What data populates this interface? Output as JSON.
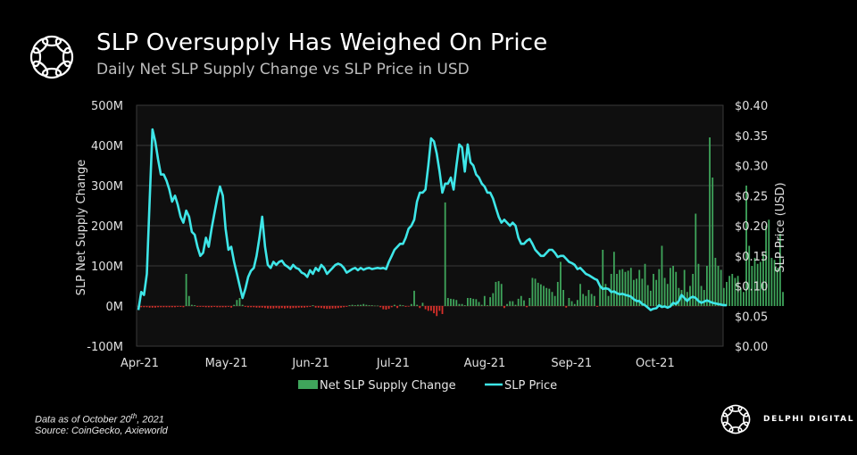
{
  "header": {
    "title": "SLP Oversupply Has Weighed On Price",
    "subtitle": "Daily Net SLP Supply Change vs SLP Price in USD",
    "logo_icon": "delphi-knot-icon"
  },
  "footer": {
    "data_as_of_prefix": "Data as of October 20",
    "data_as_of_sup": "th",
    "data_as_of_suffix": ", 2021",
    "source": "Source: CoinGecko, Axieworld",
    "brand_name": "DELPHI DIGITAL"
  },
  "colors": {
    "background": "#000000",
    "plot_bg": "#0f0f0f",
    "grid": "#4a4a4a",
    "bar_positive": "#3fa55b",
    "bar_negative": "#d9302a",
    "price_line": "#3ee6e8",
    "axis_text": "#e0e0e0"
  },
  "chart_data": {
    "type": "bar+line",
    "title": "SLP Oversupply Has Weighed On Price",
    "subtitle": "Daily Net SLP Supply Change vs SLP Price in USD",
    "xlabel": "",
    "ylabel_left": "SLP Net Supply Change",
    "ylabel_right": "SLP Price (USD)",
    "y_left": {
      "min": -100,
      "max": 500,
      "unit": "M",
      "ticks": [
        "500M",
        "400M",
        "300M",
        "200M",
        "100M",
        "0M",
        "-100M"
      ],
      "tick_values": [
        500,
        400,
        300,
        200,
        100,
        0,
        -100
      ]
    },
    "y_right": {
      "min": 0.0,
      "max": 0.4,
      "ticks": [
        "$0.40",
        "$0.35",
        "$0.30",
        "$0.25",
        "$0.20",
        "$0.15",
        "$0.10",
        "$0.05",
        "$0.00"
      ],
      "tick_values": [
        0.4,
        0.35,
        0.3,
        0.25,
        0.2,
        0.15,
        0.1,
        0.05,
        0.0
      ]
    },
    "x_ticks": [
      "Apr-21",
      "May-21",
      "Jun-21",
      "Jul-21",
      "Aug-21",
      "Sep-21",
      "Oct-21"
    ],
    "x_tick_days": [
      0,
      30,
      61,
      91,
      122,
      153,
      183
    ],
    "start_date": "2021-04-01",
    "end_date": "2021-10-20",
    "grid": true,
    "legend": {
      "placement": "bottom",
      "entries": [
        {
          "label": "Net SLP Supply Change",
          "type": "bar"
        },
        {
          "label": "SLP Price",
          "type": "line"
        }
      ]
    },
    "series": [
      {
        "name": "SLP Price",
        "axis": "right",
        "unit": "USD",
        "values": [
          0.06,
          0.09,
          0.085,
          0.12,
          0.24,
          0.36,
          0.34,
          0.31,
          0.285,
          0.285,
          0.275,
          0.26,
          0.24,
          0.25,
          0.235,
          0.215,
          0.205,
          0.225,
          0.215,
          0.19,
          0.185,
          0.165,
          0.15,
          0.155,
          0.18,
          0.165,
          0.195,
          0.22,
          0.245,
          0.265,
          0.25,
          0.195,
          0.16,
          0.165,
          0.14,
          0.12,
          0.1,
          0.08,
          0.095,
          0.115,
          0.125,
          0.13,
          0.15,
          0.18,
          0.215,
          0.165,
          0.135,
          0.13,
          0.14,
          0.135,
          0.14,
          0.142,
          0.135,
          0.132,
          0.128,
          0.135,
          0.13,
          0.128,
          0.122,
          0.12,
          0.115,
          0.126,
          0.12,
          0.13,
          0.125,
          0.135,
          0.13,
          0.12,
          0.125,
          0.13,
          0.135,
          0.137,
          0.135,
          0.13,
          0.122,
          0.125,
          0.128,
          0.13,
          0.126,
          0.13,
          0.127,
          0.129,
          0.13,
          0.128,
          0.129,
          0.13,
          0.129,
          0.13,
          0.128,
          0.14,
          0.15,
          0.16,
          0.165,
          0.17,
          0.17,
          0.18,
          0.195,
          0.2,
          0.21,
          0.24,
          0.255,
          0.255,
          0.26,
          0.3,
          0.345,
          0.34,
          0.32,
          0.29,
          0.255,
          0.27,
          0.27,
          0.28,
          0.26,
          0.3,
          0.335,
          0.33,
          0.29,
          0.335,
          0.305,
          0.3,
          0.285,
          0.28,
          0.27,
          0.265,
          0.255,
          0.255,
          0.245,
          0.23,
          0.215,
          0.205,
          0.21,
          0.205,
          0.2,
          0.205,
          0.2,
          0.18,
          0.17,
          0.17,
          0.175,
          0.178,
          0.17,
          0.16,
          0.155,
          0.15,
          0.15,
          0.155,
          0.16,
          0.16,
          0.155,
          0.148,
          0.15,
          0.15,
          0.145,
          0.14,
          0.138,
          0.135,
          0.128,
          0.13,
          0.125,
          0.12,
          0.118,
          0.115,
          0.112,
          0.11,
          0.1,
          0.095,
          0.096,
          0.095,
          0.09,
          0.091,
          0.088,
          0.086,
          0.087,
          0.085,
          0.084,
          0.082,
          0.078,
          0.075,
          0.075,
          0.07,
          0.068,
          0.064,
          0.06,
          0.062,
          0.063,
          0.068,
          0.065,
          0.066,
          0.064,
          0.066,
          0.072,
          0.07,
          0.075,
          0.085,
          0.08,
          0.075,
          0.08,
          0.082,
          0.08,
          0.075,
          0.072,
          0.074,
          0.076,
          0.074,
          0.072,
          0.071,
          0.07,
          0.069,
          0.068,
          0.068
        ]
      },
      {
        "name": "Net SLP Supply Change",
        "axis": "left",
        "unit": "M",
        "values": [
          -3,
          -3,
          -3,
          -3,
          -4,
          -4,
          -4,
          -3,
          -3,
          -3,
          -3,
          -3,
          -3,
          -3,
          -2,
          -2,
          -3,
          80,
          25,
          3,
          2,
          -2,
          -2,
          -2,
          -3,
          -3,
          -3,
          -2,
          -3,
          -3,
          -3,
          -3,
          -2,
          -4,
          3,
          15,
          20,
          3,
          -2,
          -3,
          -3,
          -3,
          -4,
          -4,
          -4,
          -5,
          -6,
          -6,
          -6,
          -5,
          -6,
          -5,
          -6,
          -5,
          -6,
          -5,
          -5,
          -4,
          -4,
          -4,
          -3,
          -2,
          2,
          -4,
          -4,
          -5,
          -6,
          -7,
          -7,
          -6,
          -6,
          -5,
          -4,
          -3,
          -2,
          2,
          3,
          2,
          3,
          3,
          5,
          3,
          2,
          2,
          1,
          1,
          -3,
          -8,
          -9,
          -7,
          -3,
          3,
          -5,
          3,
          2,
          -2,
          -1,
          5,
          38,
          3,
          -5,
          8,
          -8,
          -12,
          -12,
          -18,
          -25,
          -12,
          -20,
          258,
          20,
          18,
          17,
          15,
          5,
          5,
          2,
          20,
          20,
          18,
          17,
          10,
          3,
          25,
          2,
          22,
          32,
          60,
          62,
          55,
          -5,
          5,
          12,
          12,
          3,
          18,
          25,
          14,
          -3,
          20,
          70,
          68,
          58,
          54,
          50,
          45,
          43,
          35,
          25,
          60,
          110,
          40,
          -4,
          20,
          12,
          5,
          15,
          55,
          30,
          25,
          40,
          30,
          25,
          -2,
          50,
          140,
          55,
          25,
          80,
          135,
          80,
          90,
          92,
          85,
          88,
          95,
          65,
          68,
          90,
          68,
          105,
          52,
          38,
          80,
          65,
          92,
          150,
          70,
          55,
          95,
          100,
          85,
          45,
          40,
          90,
          35,
          50,
          80,
          230,
          105,
          50,
          40,
          100,
          420,
          320,
          120,
          100,
          90,
          45,
          60,
          75,
          80,
          70,
          75,
          45,
          35,
          300,
          150,
          100,
          120,
          105,
          110,
          130,
          200,
          215,
          120,
          115,
          95,
          180,
          35
        ]
      }
    ]
  }
}
